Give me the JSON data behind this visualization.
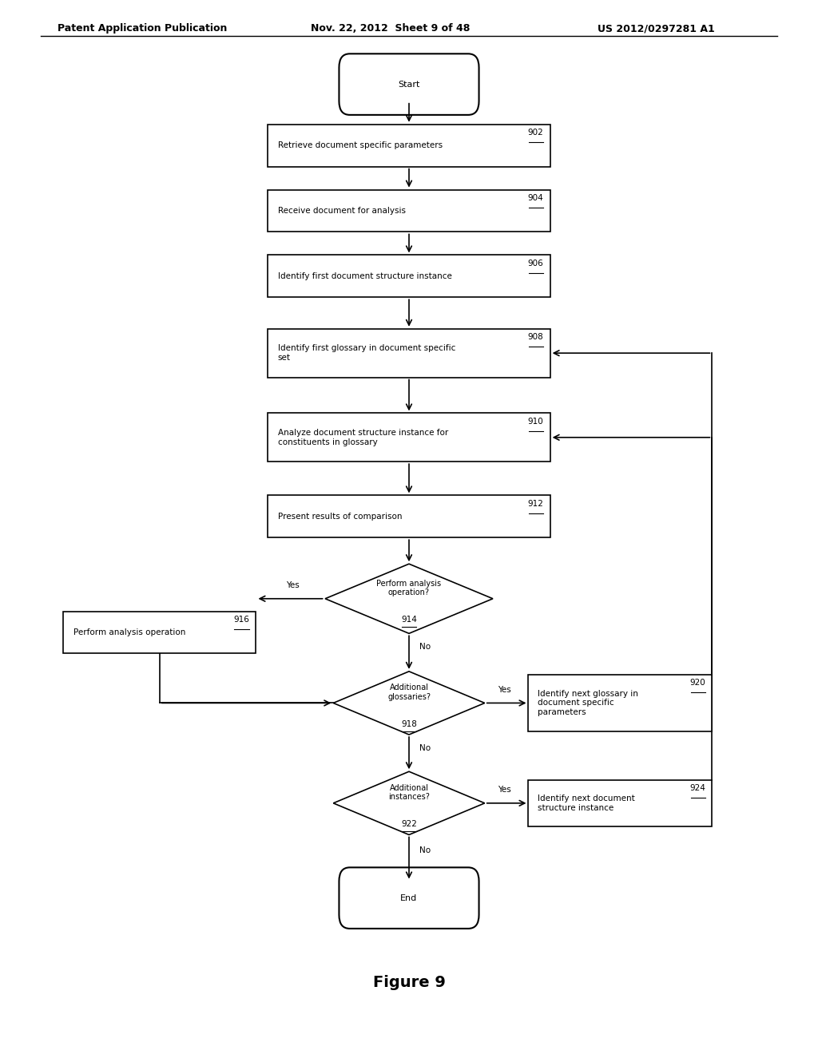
{
  "title_left": "Patent Application Publication",
  "title_mid": "Nov. 22, 2012  Sheet 9 of 48",
  "title_right": "US 2012/0297281 A1",
  "figure_label": "Figure 9",
  "background_color": "#ffffff",
  "header_fs": 9,
  "label_fs": 7.5,
  "ref_fs": 7.5,
  "fig_label_fs": 14
}
